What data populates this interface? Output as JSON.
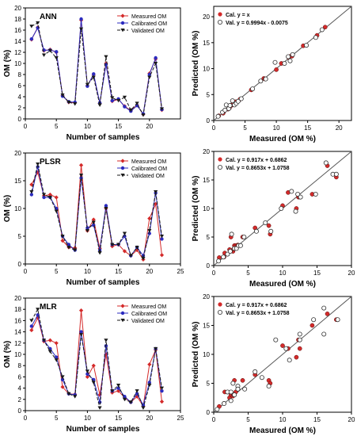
{
  "colors": {
    "measured": "#d42a2a",
    "calibrated": "#2b2bbf",
    "validated": "#1a1a1a",
    "axis": "#000000",
    "refline": "#555555"
  },
  "chart_data": [
    {
      "type": "line",
      "title": "ANN",
      "xlabel": "Number of samples",
      "ylabel": "OM (%)",
      "xlim": [
        0,
        25
      ],
      "ylim": [
        0,
        20
      ],
      "xticks": [
        0,
        5,
        10,
        15,
        20
      ],
      "yticks": [
        0,
        2,
        4,
        6,
        8,
        10,
        12,
        14,
        16,
        18,
        20
      ],
      "x": [
        1,
        2,
        3,
        4,
        5,
        6,
        7,
        8,
        9,
        10,
        11,
        12,
        13,
        14,
        15,
        16,
        17,
        18,
        19,
        20,
        21,
        22
      ],
      "legend_position": "top-right",
      "series": [
        {
          "name": "Measured OM",
          "key": "measured",
          "values": [
            14.3,
            16.5,
            12.3,
            12.5,
            12.0,
            4.2,
            3.0,
            2.9,
            17.8,
            6.0,
            8.0,
            2.8,
            10.0,
            3.2,
            3.5,
            2.3,
            1.5,
            2.5,
            0.8,
            8.2,
            10.8,
            1.6
          ]
        },
        {
          "name": "Calibrated OM",
          "key": "calibrated",
          "values": [
            14.4,
            16.4,
            12.4,
            12.4,
            12.1,
            4.1,
            3.1,
            3.0,
            18.0,
            5.9,
            8.1,
            2.9,
            9.8,
            3.3,
            3.6,
            2.2,
            1.4,
            2.4,
            0.9,
            8.0,
            11.0,
            1.7
          ]
        },
        {
          "name": "Validated  OM",
          "key": "validated",
          "values": [
            16.7,
            17.3,
            11.5,
            12.3,
            11.0,
            4.3,
            3.0,
            2.7,
            16.2,
            6.2,
            7.5,
            2.5,
            11.2,
            3.8,
            3.3,
            3.9,
            1.6,
            2.8,
            0.7,
            7.5,
            10.0,
            1.8
          ]
        }
      ]
    },
    {
      "type": "scatter",
      "xlabel": "Measured (OM %)",
      "ylabel": "Predicted (OM %)",
      "xlim": [
        0,
        22
      ],
      "ylim": [
        0,
        22
      ],
      "xticks": [
        0,
        5,
        10,
        15,
        20
      ],
      "yticks": [
        0,
        5,
        10,
        15,
        20
      ],
      "legend_position": "top-left",
      "series": [
        {
          "name": "Cal. y = x",
          "key": "cal",
          "points": [
            [
              0.8,
              0.9
            ],
            [
              1.5,
              1.4
            ],
            [
              1.6,
              1.7
            ],
            [
              2.3,
              2.2
            ],
            [
              2.5,
              2.4
            ],
            [
              2.8,
              2.9
            ],
            [
              2.9,
              3.0
            ],
            [
              3.0,
              3.1
            ],
            [
              3.2,
              3.3
            ],
            [
              3.5,
              3.6
            ],
            [
              4.2,
              4.1
            ],
            [
              6.0,
              5.9
            ],
            [
              8.0,
              8.1
            ],
            [
              8.2,
              8.0
            ],
            [
              10.0,
              9.8
            ],
            [
              10.8,
              11.0
            ],
            [
              12.0,
              12.1
            ],
            [
              12.3,
              12.4
            ],
            [
              12.5,
              12.4
            ],
            [
              14.3,
              14.4
            ],
            [
              16.5,
              16.4
            ],
            [
              17.8,
              18.0
            ]
          ]
        },
        {
          "name": "Val. y = 0.9994x - 0.0075",
          "key": "val",
          "points": [
            [
              0.7,
              0.8
            ],
            [
              1.4,
              1.6
            ],
            [
              1.8,
              2.0
            ],
            [
              2.0,
              3.0
            ],
            [
              2.4,
              2.3
            ],
            [
              2.6,
              2.9
            ],
            [
              3.0,
              3.8
            ],
            [
              3.3,
              3.0
            ],
            [
              3.6,
              3.3
            ],
            [
              3.9,
              3.7
            ],
            [
              4.4,
              4.2
            ],
            [
              6.2,
              6.1
            ],
            [
              7.5,
              7.6
            ],
            [
              8.3,
              8.0
            ],
            [
              9.8,
              11.2
            ],
            [
              11.3,
              11.0
            ],
            [
              11.9,
              12.3
            ],
            [
              12.2,
              11.5
            ],
            [
              12.6,
              12.7
            ],
            [
              14.8,
              14.5
            ],
            [
              16.3,
              16.0
            ],
            [
              17.3,
              17.5
            ]
          ]
        }
      ],
      "trendlines": [
        {
          "slope": 1,
          "intercept": 0
        }
      ]
    },
    {
      "type": "line",
      "title": "PLSR",
      "xlabel": "Number of samples",
      "ylabel": "OM (%)",
      "xlim": [
        0,
        25
      ],
      "ylim": [
        0,
        20
      ],
      "xticks": [
        0,
        5,
        10,
        15,
        20,
        25
      ],
      "yticks": [
        0,
        5,
        10,
        15,
        20
      ],
      "x": [
        1,
        2,
        3,
        4,
        5,
        6,
        7,
        8,
        9,
        10,
        11,
        12,
        13,
        14,
        15,
        16,
        17,
        18,
        19,
        20,
        21,
        22
      ],
      "legend_position": "top-right",
      "series": [
        {
          "name": "Measured OM",
          "key": "measured",
          "values": [
            14.3,
            16.5,
            12.3,
            12.5,
            12.0,
            4.2,
            3.0,
            2.9,
            17.8,
            6.0,
            8.0,
            2.8,
            10.0,
            3.2,
            3.5,
            2.3,
            1.5,
            2.5,
            0.8,
            8.2,
            10.8,
            1.6
          ]
        },
        {
          "name": "Calibrated OM",
          "key": "calibrated",
          "values": [
            12.5,
            17.5,
            12.0,
            12.0,
            10.0,
            5.0,
            3.5,
            2.5,
            15.5,
            6.5,
            7.0,
            2.5,
            10.5,
            3.5,
            3.5,
            5.0,
            1.5,
            3.0,
            1.5,
            5.5,
            12.8,
            4.5
          ]
        },
        {
          "name": "Validated   OM",
          "key": "validated",
          "values": [
            13.0,
            18.0,
            12.5,
            12.0,
            9.5,
            5.0,
            3.0,
            2.5,
            16.0,
            6.0,
            7.5,
            2.0,
            10.0,
            3.5,
            3.5,
            5.5,
            1.5,
            3.0,
            1.0,
            6.0,
            13.0,
            5.0
          ]
        }
      ]
    },
    {
      "type": "scatter",
      "xlabel": "Measured (OM %)",
      "ylabel": "Predicted (OM %)",
      "xlim": [
        0,
        20
      ],
      "ylim": [
        0,
        20
      ],
      "xticks": [
        0,
        5,
        10,
        15,
        20
      ],
      "yticks": [
        0,
        5,
        10,
        15,
        20
      ],
      "legend_position": "top-left",
      "series": [
        {
          "name": "Cal. y = 0.917x + 0.6862",
          "key": "cal",
          "points": [
            [
              0.8,
              1.4
            ],
            [
              1.5,
              1.5
            ],
            [
              1.6,
              2.2
            ],
            [
              2.3,
              2.8
            ],
            [
              2.5,
              5.0
            ],
            [
              2.8,
              2.5
            ],
            [
              2.9,
              2.9
            ],
            [
              3.0,
              3.5
            ],
            [
              3.2,
              3.5
            ],
            [
              3.5,
              3.6
            ],
            [
              4.2,
              5.0
            ],
            [
              6.0,
              6.6
            ],
            [
              8.0,
              7.0
            ],
            [
              8.2,
              5.5
            ],
            [
              10.0,
              10.5
            ],
            [
              10.8,
              12.8
            ],
            [
              12.0,
              10.0
            ],
            [
              12.3,
              12.0
            ],
            [
              12.5,
              12.0
            ],
            [
              14.3,
              12.5
            ],
            [
              16.5,
              17.5
            ],
            [
              17.8,
              15.5
            ]
          ]
        },
        {
          "name": "Val. y = 0.8653x + 1.0758",
          "key": "val",
          "points": [
            [
              0.7,
              0.8
            ],
            [
              1.4,
              1.5
            ],
            [
              2.0,
              2.0
            ],
            [
              2.4,
              2.5
            ],
            [
              2.6,
              5.5
            ],
            [
              3.0,
              3.0
            ],
            [
              3.3,
              3.0
            ],
            [
              3.6,
              3.5
            ],
            [
              3.9,
              3.5
            ],
            [
              4.4,
              5.0
            ],
            [
              6.2,
              6.0
            ],
            [
              7.5,
              7.5
            ],
            [
              8.3,
              6.0
            ],
            [
              9.8,
              10.0
            ],
            [
              11.3,
              13.0
            ],
            [
              11.9,
              9.5
            ],
            [
              12.2,
              12.5
            ],
            [
              12.6,
              12.0
            ],
            [
              14.8,
              12.5
            ],
            [
              16.3,
              18.0
            ],
            [
              17.3,
              16.0
            ],
            [
              17.8,
              16.0
            ]
          ]
        }
      ],
      "trendlines": [
        {
          "slope": 1,
          "intercept": 0
        }
      ]
    },
    {
      "type": "line",
      "title": "MLR",
      "xlabel": "Number of samples",
      "ylabel": "OM (%)",
      "xlim": [
        0,
        25
      ],
      "ylim": [
        0,
        20
      ],
      "xticks": [
        0,
        5,
        10,
        15,
        20,
        25
      ],
      "yticks": [
        0,
        2,
        4,
        6,
        8,
        10,
        12,
        14,
        16,
        18,
        20
      ],
      "x": [
        1,
        2,
        3,
        4,
        5,
        6,
        7,
        8,
        9,
        10,
        11,
        12,
        13,
        14,
        15,
        16,
        17,
        18,
        19,
        20,
        21,
        22
      ],
      "legend_position": "top-right",
      "series": [
        {
          "name": "Measured OM",
          "key": "measured",
          "values": [
            14.3,
            16.5,
            12.3,
            12.5,
            12.0,
            4.2,
            3.0,
            2.9,
            17.8,
            6.0,
            8.0,
            2.8,
            10.0,
            3.2,
            3.5,
            2.3,
            1.5,
            2.5,
            0.8,
            8.2,
            10.8,
            1.6
          ]
        },
        {
          "name": "Calibrated OM",
          "key": "calibrated",
          "values": [
            15.0,
            17.0,
            12.5,
            11.0,
            9.5,
            5.5,
            3.0,
            2.8,
            14.0,
            6.5,
            5.5,
            1.5,
            11.5,
            3.5,
            4.0,
            2.5,
            1.5,
            3.0,
            1.0,
            5.0,
            11.0,
            3.5
          ]
        },
        {
          "name": "Validated   OM",
          "key": "validated",
          "values": [
            16.0,
            18.0,
            12.5,
            10.5,
            9.0,
            6.0,
            3.0,
            2.5,
            13.5,
            7.0,
            5.0,
            0.5,
            12.5,
            3.5,
            4.5,
            2.0,
            1.5,
            3.5,
            0.5,
            4.5,
            11.0,
            4.0
          ]
        }
      ]
    },
    {
      "type": "scatter",
      "xlabel": "Measured (OM %)",
      "ylabel": "Predicted (OM %)",
      "xlim": [
        0,
        20
      ],
      "ylim": [
        0,
        20
      ],
      "xticks": [
        0,
        5,
        10,
        15,
        20
      ],
      "yticks": [
        0,
        5,
        10,
        15,
        20
      ],
      "legend_position": "top-left",
      "series": [
        {
          "name": "Cal. y = 0.917x + 0.6862",
          "key": "cal",
          "points": [
            [
              0.8,
              1.0
            ],
            [
              1.5,
              1.5
            ],
            [
              1.6,
              3.5
            ],
            [
              2.3,
              2.5
            ],
            [
              2.5,
              3.0
            ],
            [
              2.8,
              2.8
            ],
            [
              2.9,
              3.0
            ],
            [
              3.0,
              5.5
            ],
            [
              3.2,
              3.5
            ],
            [
              3.5,
              4.0
            ],
            [
              4.2,
              5.5
            ],
            [
              6.0,
              6.5
            ],
            [
              8.0,
              5.5
            ],
            [
              8.2,
              5.0
            ],
            [
              10.0,
              11.5
            ],
            [
              10.8,
              11.0
            ],
            [
              12.0,
              9.5
            ],
            [
              12.3,
              12.5
            ],
            [
              12.5,
              11.0
            ],
            [
              14.3,
              15.0
            ],
            [
              16.5,
              17.0
            ],
            [
              17.8,
              16.0
            ]
          ]
        },
        {
          "name": "Val. y = 0.8653x + 1.0758",
          "key": "val",
          "points": [
            [
              0.5,
              0.5
            ],
            [
              1.5,
              1.5
            ],
            [
              2.0,
              3.5
            ],
            [
              2.5,
              2.0
            ],
            [
              2.5,
              3.5
            ],
            [
              2.8,
              5.0
            ],
            [
              3.0,
              3.0
            ],
            [
              3.5,
              4.5
            ],
            [
              3.5,
              4.0
            ],
            [
              4.5,
              4.0
            ],
            [
              6.0,
              7.0
            ],
            [
              7.0,
              6.0
            ],
            [
              8.0,
              4.5
            ],
            [
              9.0,
              12.5
            ],
            [
              10.5,
              11.0
            ],
            [
              11.0,
              9.0
            ],
            [
              12.5,
              12.5
            ],
            [
              12.5,
              13.5
            ],
            [
              14.5,
              16.0
            ],
            [
              16.0,
              18.0
            ],
            [
              16.0,
              13.5
            ],
            [
              18.0,
              16.0
            ]
          ]
        }
      ],
      "trendlines": [
        {
          "slope": 1,
          "intercept": 0
        }
      ]
    }
  ]
}
